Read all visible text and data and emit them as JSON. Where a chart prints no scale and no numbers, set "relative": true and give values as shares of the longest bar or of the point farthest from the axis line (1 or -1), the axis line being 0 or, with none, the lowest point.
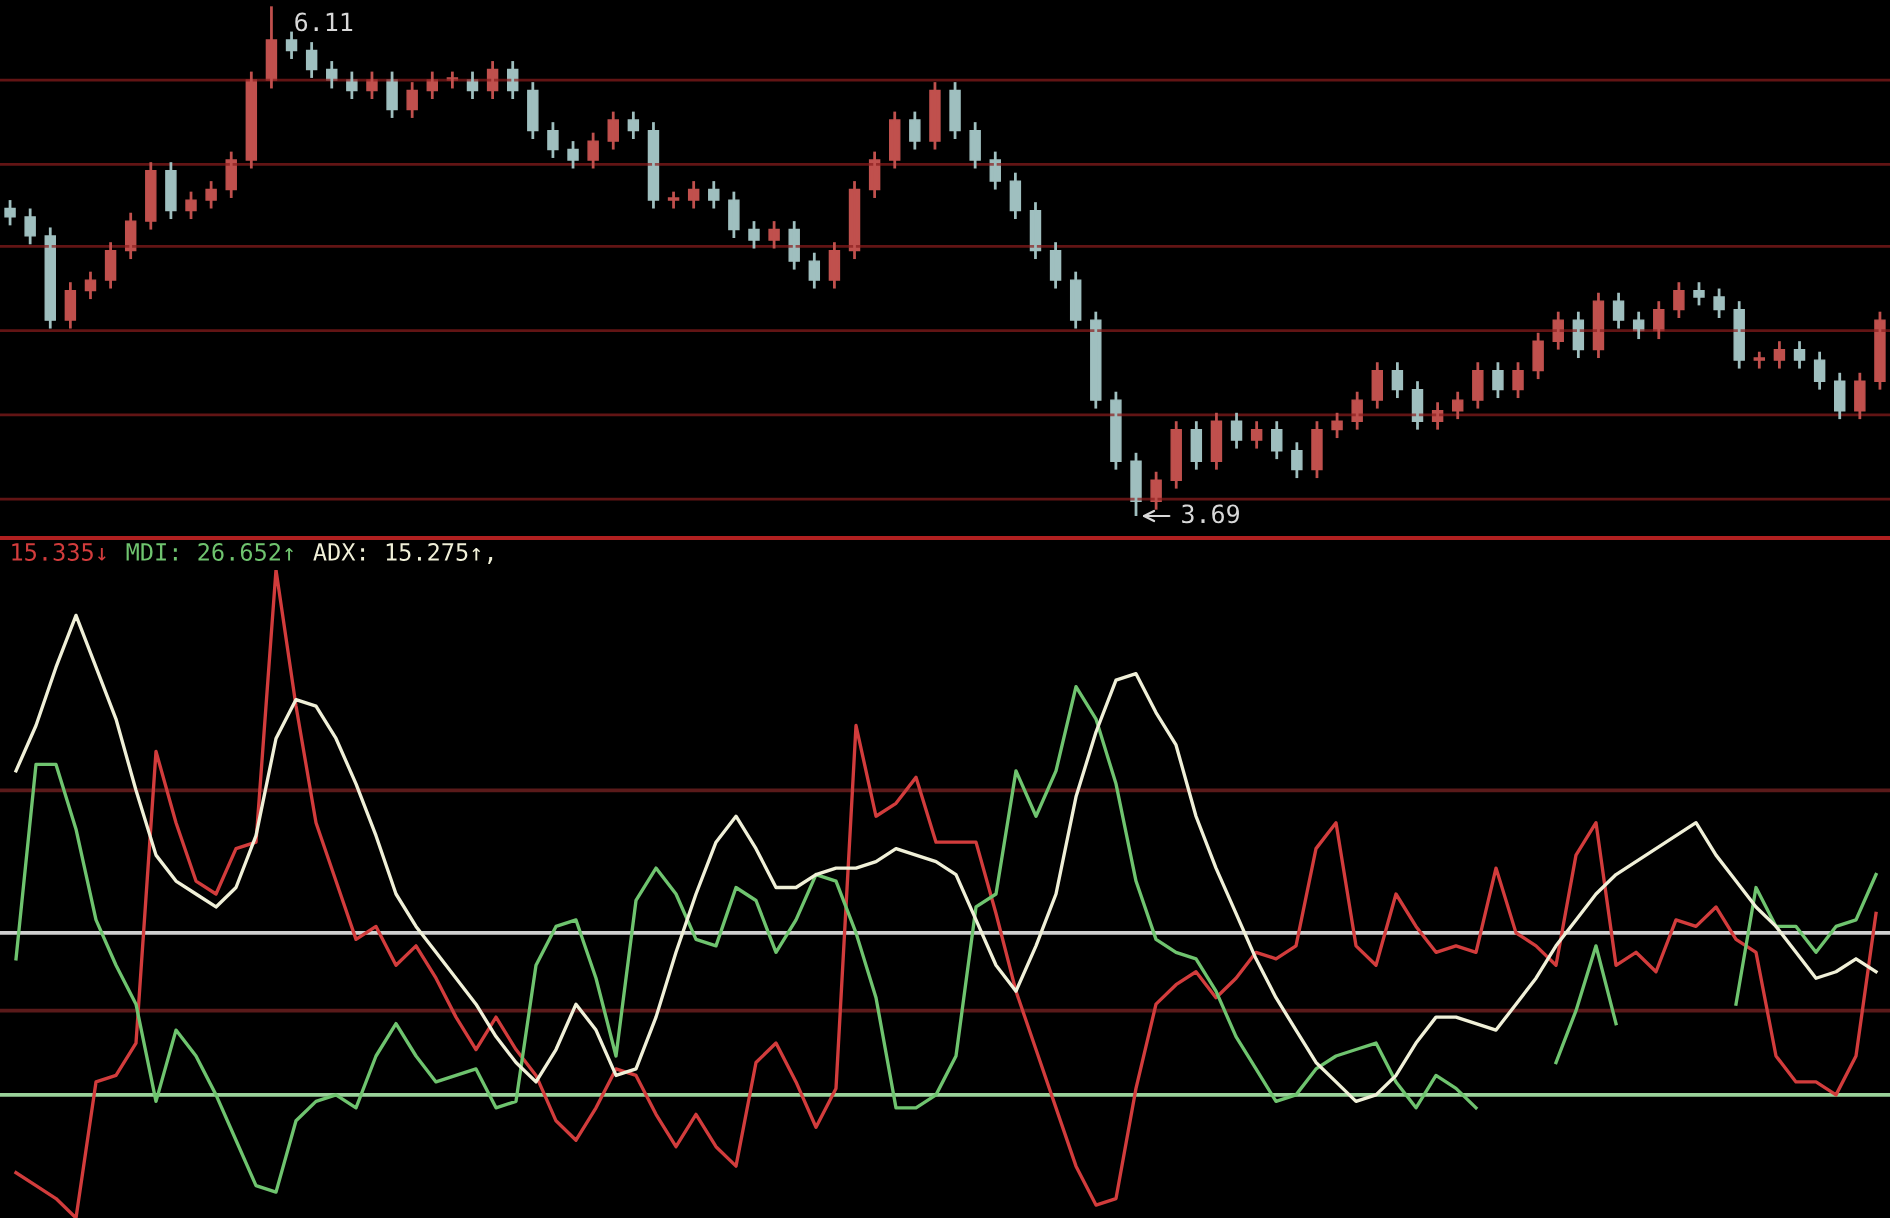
{
  "chart_data": [
    {
      "type": "candlestick",
      "grid": "y",
      "ylim": [
        3.595,
        6.14
      ],
      "yticks": [
        {
          "value": 5.76,
          "label": null
        },
        {
          "value": 5.36,
          "label": null
        },
        {
          "value": 4.97,
          "label": null
        },
        {
          "value": 4.57,
          "label": null
        },
        {
          "value": 4.17,
          "label": null
        },
        {
          "value": 3.77,
          "label": null
        }
      ],
      "annotations": [
        "6.11",
        "3.69"
      ],
      "categories": [
        null,
        null,
        null,
        null,
        null,
        null,
        null,
        null,
        null,
        null,
        null,
        null,
        null,
        null,
        null,
        null,
        null,
        null,
        null,
        null,
        null,
        null,
        null,
        null,
        null,
        null,
        null,
        null,
        null,
        null,
        null,
        null,
        null,
        null,
        null,
        null,
        null,
        null,
        null,
        null,
        null,
        null,
        null,
        null,
        null,
        null,
        null,
        null,
        null,
        null,
        null,
        null,
        null,
        null,
        null,
        null,
        null,
        null,
        null,
        null,
        null,
        null,
        null,
        null,
        null,
        null,
        null,
        null,
        null,
        null,
        null,
        null,
        null,
        null,
        null,
        null,
        null,
        null,
        null,
        null,
        null,
        null,
        null,
        null,
        null,
        null,
        null,
        null,
        null,
        null,
        null,
        null,
        null,
        null
      ],
      "colors": [
        "#9fbfbf",
        "#9fbfbf",
        "#9fbfbf",
        "#c0504d",
        "#c0504d",
        "#c0504d",
        "#c0504d",
        "#c0504d",
        "#9fbfbf",
        "#c0504d",
        "#c0504d",
        "#c0504d",
        "#c0504d",
        "#c0504d",
        "#9fbfbf",
        "#9fbfbf",
        "#9fbfbf",
        "#9fbfbf",
        "#c0504d",
        "#9fbfbf",
        "#c0504d",
        "#c0504d",
        "#c0504d",
        "#9fbfbf",
        "#c0504d",
        "#9fbfbf",
        "#9fbfbf",
        "#9fbfbf",
        "#9fbfbf",
        "#c0504d",
        "#c0504d",
        "#9fbfbf",
        "#9fbfbf",
        "#c0504d",
        "#c0504d",
        "#9fbfbf",
        "#9fbfbf",
        "#9fbfbf",
        "#c0504d",
        "#9fbfbf",
        "#9fbfbf",
        "#c0504d",
        "#c0504d",
        "#c0504d",
        "#c0504d",
        "#9fbfbf",
        "#c0504d",
        "#9fbfbf",
        "#9fbfbf",
        "#9fbfbf",
        "#9fbfbf",
        "#9fbfbf",
        "#9fbfbf",
        "#9fbfbf",
        "#9fbfbf",
        "#9fbfbf",
        "#9fbfbf",
        "#c0504d",
        "#c0504d",
        "#9fbfbf",
        "#c0504d",
        "#9fbfbf",
        "#c0504d",
        "#9fbfbf",
        "#9fbfbf",
        "#c0504d",
        "#c0504d",
        "#c0504d",
        "#c0504d",
        "#9fbfbf",
        "#9fbfbf",
        "#c0504d",
        "#c0504d",
        "#c0504d",
        "#9fbfbf",
        "#c0504d",
        "#c0504d",
        "#c0504d",
        "#9fbfbf",
        "#c0504d",
        "#9fbfbf",
        "#9fbfbf",
        "#c0504d",
        "#c0504d",
        "#9fbfbf",
        "#9fbfbf",
        "#9fbfbf",
        "#c0504d",
        "#c0504d",
        "#9fbfbf",
        "#9fbfbf",
        "#9fbfbf",
        "#c0504d",
        "#c0504d"
      ],
      "ohlc": [
        [
          5.15,
          5.19,
          5.07,
          5.11
        ],
        [
          5.11,
          5.15,
          4.98,
          5.02
        ],
        [
          5.02,
          5.06,
          4.58,
          4.62
        ],
        [
          4.62,
          4.8,
          4.58,
          4.76
        ],
        [
          4.76,
          4.85,
          4.72,
          4.81
        ],
        [
          4.81,
          4.99,
          4.77,
          4.95
        ],
        [
          4.95,
          5.13,
          4.91,
          5.09
        ],
        [
          5.09,
          5.37,
          5.05,
          5.33
        ],
        [
          5.33,
          5.37,
          5.1,
          5.14
        ],
        [
          5.14,
          5.23,
          5.1,
          5.19
        ],
        [
          5.19,
          5.28,
          5.15,
          5.24
        ],
        [
          5.24,
          5.42,
          5.2,
          5.38
        ],
        [
          5.38,
          5.8,
          5.34,
          5.76
        ],
        [
          5.76,
          6.11,
          5.72,
          5.95
        ],
        [
          5.95,
          5.99,
          5.86,
          5.9
        ],
        [
          5.9,
          5.94,
          5.77,
          5.81
        ],
        [
          5.81,
          5.85,
          5.72,
          5.76
        ],
        [
          5.76,
          5.8,
          5.67,
          5.71
        ],
        [
          5.71,
          5.8,
          5.67,
          5.76
        ],
        [
          5.76,
          5.8,
          5.58,
          5.62
        ],
        [
          5.62,
          5.75,
          5.58,
          5.71
        ],
        [
          5.71,
          5.8,
          5.67,
          5.76
        ],
        [
          5.76,
          5.8,
          5.72,
          5.76
        ],
        [
          5.76,
          5.8,
          5.67,
          5.71
        ],
        [
          5.71,
          5.85,
          5.67,
          5.81
        ],
        [
          5.81,
          5.85,
          5.67,
          5.71
        ],
        [
          5.71,
          5.75,
          5.48,
          5.52
        ],
        [
          5.52,
          5.56,
          5.39,
          5.43
        ],
        [
          5.43,
          5.47,
          5.34,
          5.38
        ],
        [
          5.38,
          5.51,
          5.34,
          5.47
        ],
        [
          5.47,
          5.61,
          5.43,
          5.57
        ],
        [
          5.57,
          5.61,
          5.48,
          5.52
        ],
        [
          5.52,
          5.56,
          5.15,
          5.19
        ],
        [
          5.19,
          5.23,
          5.15,
          5.19
        ],
        [
          5.19,
          5.28,
          5.15,
          5.24
        ],
        [
          5.24,
          5.28,
          5.15,
          5.19
        ],
        [
          5.19,
          5.23,
          5.01,
          5.05
        ],
        [
          5.05,
          5.09,
          4.96,
          5.0
        ],
        [
          5.0,
          5.09,
          4.96,
          5.05
        ],
        [
          5.05,
          5.09,
          4.86,
          4.9
        ],
        [
          4.9,
          4.94,
          4.77,
          4.81
        ],
        [
          4.81,
          4.99,
          4.77,
          4.95
        ],
        [
          4.95,
          5.28,
          4.91,
          5.24
        ],
        [
          5.24,
          5.42,
          5.2,
          5.38
        ],
        [
          5.38,
          5.61,
          5.34,
          5.57
        ],
        [
          5.57,
          5.61,
          5.43,
          5.47
        ],
        [
          5.47,
          5.75,
          5.43,
          5.71
        ],
        [
          5.71,
          5.75,
          5.48,
          5.52
        ],
        [
          5.52,
          5.56,
          5.34,
          5.38
        ],
        [
          5.38,
          5.42,
          5.24,
          5.28
        ],
        [
          5.28,
          5.32,
          5.1,
          5.14
        ],
        [
          5.14,
          5.18,
          4.91,
          4.95
        ],
        [
          4.95,
          4.99,
          4.77,
          4.81
        ],
        [
          4.81,
          4.85,
          4.58,
          4.62
        ],
        [
          4.62,
          4.66,
          4.2,
          4.24
        ],
        [
          4.24,
          4.28,
          3.91,
          3.95
        ],
        [
          3.95,
          3.99,
          3.69,
          3.76
        ],
        [
          3.76,
          3.9,
          3.72,
          3.86
        ],
        [
          3.86,
          4.14,
          3.82,
          4.1
        ],
        [
          4.1,
          4.14,
          3.91,
          3.95
        ],
        [
          3.95,
          4.18,
          3.91,
          4.14
        ],
        [
          4.14,
          4.18,
          4.01,
          4.05
        ],
        [
          4.05,
          4.14,
          4.01,
          4.1
        ],
        [
          4.1,
          4.14,
          3.96,
          4.0
        ],
        [
          4.0,
          4.04,
          3.87,
          3.91
        ],
        [
          3.91,
          4.14,
          3.87,
          4.1
        ],
        [
          4.1,
          4.18,
          4.06,
          4.14
        ],
        [
          4.14,
          4.28,
          4.1,
          4.24
        ],
        [
          4.24,
          4.42,
          4.2,
          4.38
        ],
        [
          4.38,
          4.42,
          4.25,
          4.29
        ],
        [
          4.29,
          4.33,
          4.1,
          4.14
        ],
        [
          4.14,
          4.23,
          4.1,
          4.19
        ],
        [
          4.19,
          4.28,
          4.15,
          4.24
        ],
        [
          4.24,
          4.42,
          4.2,
          4.38
        ],
        [
          4.38,
          4.42,
          4.25,
          4.29
        ],
        [
          4.29,
          4.42,
          4.25,
          4.38
        ],
        [
          4.38,
          4.56,
          4.34,
          4.52
        ],
        [
          4.52,
          4.66,
          4.48,
          4.62
        ],
        [
          4.62,
          4.66,
          4.44,
          4.48
        ],
        [
          4.48,
          4.75,
          4.44,
          4.71
        ],
        [
          4.71,
          4.75,
          4.58,
          4.62
        ],
        [
          4.62,
          4.66,
          4.53,
          4.57
        ],
        [
          4.57,
          4.71,
          4.53,
          4.67
        ],
        [
          4.67,
          4.8,
          4.63,
          4.76
        ],
        [
          4.76,
          4.8,
          4.69,
          4.73
        ],
        [
          4.73,
          4.77,
          4.63,
          4.67
        ],
        [
          4.67,
          4.71,
          4.39,
          4.43
        ],
        [
          4.43,
          4.47,
          4.39,
          4.43
        ],
        [
          4.43,
          4.52,
          4.39,
          4.48
        ],
        [
          4.48,
          4.52,
          4.39,
          4.43
        ],
        [
          4.43,
          4.47,
          4.29,
          4.33
        ],
        [
          4.33,
          4.37,
          4.15,
          4.19
        ],
        [
          4.19,
          4.37,
          4.15,
          4.33
        ],
        [
          4.33,
          4.66,
          4.29,
          4.62
        ]
      ]
    },
    {
      "type": "line",
      "relative": true,
      "annotations": [
        "15.335↓",
        "MDI: 26.652↑",
        "ADX: 15.275↑,"
      ],
      "ref_lines": [
        {
          "axis": "y",
          "value": 0.66,
          "color": "#5a1a1a"
        },
        {
          "axis": "y",
          "value": 0.44,
          "color": "#d0d0d0"
        },
        {
          "axis": "y",
          "value": 0.32,
          "color": "#5a1a1a"
        },
        {
          "axis": "y",
          "value": 0.19,
          "color": "#9ad29a"
        }
      ],
      "categories": [
        null,
        null,
        null,
        null,
        null,
        null,
        null,
        null,
        null,
        null,
        null,
        null,
        null,
        null,
        null,
        null,
        null,
        null,
        null,
        null,
        null,
        null,
        null,
        null,
        null,
        null,
        null,
        null,
        null,
        null,
        null,
        null,
        null,
        null,
        null,
        null,
        null,
        null,
        null,
        null,
        null,
        null,
        null,
        null,
        null,
        null,
        null,
        null,
        null,
        null,
        null,
        null,
        null,
        null,
        null,
        null,
        null,
        null,
        null,
        null,
        null,
        null,
        null,
        null,
        null,
        null,
        null,
        null,
        null,
        null,
        null,
        null,
        null,
        null,
        null,
        null,
        null,
        null,
        null,
        null,
        null,
        null,
        null,
        null,
        null,
        null,
        null,
        null,
        null,
        null,
        null,
        null,
        null,
        null
      ],
      "series": [
        {
          "color": "#d23c3c",
          "values": [
            0.07,
            0.05,
            0.03,
            0,
            0.21,
            0.22,
            0.27,
            0.72,
            0.61,
            0.52,
            0.5,
            0.57,
            0.58,
            1.0,
            0.79,
            0.61,
            0.52,
            0.43,
            0.45,
            0.39,
            0.42,
            0.37,
            0.31,
            0.26,
            0.31,
            0.26,
            0.22,
            0.15,
            0.12,
            0.17,
            0.23,
            0.22,
            0.16,
            0.11,
            0.16,
            0.11,
            0.08,
            0.24,
            0.27,
            0.21,
            0.14,
            0.2,
            0.76,
            0.62,
            0.64,
            0.68,
            0.58,
            0.58,
            0.58,
            0.47,
            0.35,
            0.26,
            0.17,
            0.08,
            0.02,
            0.03,
            0.2,
            0.33,
            0.36,
            0.38,
            0.34,
            0.37,
            0.41,
            0.4,
            0.42,
            0.57,
            0.61,
            0.42,
            0.39,
            0.5,
            0.45,
            0.41,
            0.42,
            0.41,
            0.54,
            0.44,
            0.42,
            0.39,
            0.56,
            0.61,
            0.39,
            0.41,
            0.38,
            0.46,
            0.45,
            0.48,
            0.43,
            0.41,
            0.25,
            0.21,
            0.21,
            0.19,
            0.25,
            0.47
          ]
        },
        {
          "color": "#6fc46f",
          "values": [
            0.4,
            0.7,
            0.7,
            0.6,
            0.46,
            0.39,
            0.33,
            0.18,
            0.29,
            0.25,
            0.19,
            0.12,
            0.05,
            0.04,
            0.15,
            0.18,
            0.19,
            0.17,
            0.25,
            0.3,
            0.25,
            0.21,
            0.22,
            0.23,
            0.17,
            0.18,
            0.39,
            0.45,
            0.46,
            0.37,
            0.25,
            0.49,
            0.54,
            0.5,
            0.43,
            0.42,
            0.51,
            0.49,
            0.41,
            0.46,
            0.53,
            0.52,
            0.44,
            0.34,
            0.17,
            0.17,
            0.19,
            0.25,
            0.48,
            0.5,
            0.69,
            0.62,
            0.69,
            0.82,
            0.77,
            0.67,
            0.52,
            0.43,
            0.41,
            0.4,
            0.35,
            0.28,
            0.23,
            0.18,
            0.19,
            0.23,
            0.25,
            0.26,
            0.27,
            0.21,
            0.17,
            0.22,
            0.2,
            0.17,
            null,
            null,
            null,
            0.24,
            0.32,
            0.42,
            0.3,
            null,
            null,
            null,
            null,
            null,
            0.33,
            0.51,
            0.45,
            0.45,
            0.41,
            0.45,
            0.46,
            0.53
          ]
        },
        {
          "color": "#f0f0d8",
          "values": [
            0.69,
            0.76,
            0.85,
            0.93,
            0.85,
            0.77,
            0.66,
            0.56,
            0.52,
            0.5,
            0.48,
            0.51,
            0.59,
            0.74,
            0.8,
            0.79,
            0.74,
            0.67,
            0.59,
            0.5,
            0.45,
            0.41,
            0.37,
            0.33,
            0.28,
            0.24,
            0.21,
            0.26,
            0.33,
            0.29,
            0.22,
            0.23,
            0.31,
            0.41,
            0.5,
            0.58,
            0.62,
            0.57,
            0.51,
            0.51,
            0.53,
            0.54,
            0.54,
            0.55,
            0.57,
            0.56,
            0.55,
            0.53,
            0.46,
            0.39,
            0.35,
            0.42,
            0.5,
            0.65,
            0.75,
            0.83,
            0.84,
            0.78,
            0.73,
            0.62,
            0.54,
            0.47,
            0.4,
            0.34,
            0.29,
            0.24,
            0.21,
            0.18,
            0.19,
            0.22,
            0.27,
            0.31,
            0.31,
            0.3,
            0.29,
            0.33,
            0.37,
            0.42,
            0.46,
            0.5,
            0.53,
            0.55,
            0.57,
            0.59,
            0.61,
            0.56,
            0.52,
            0.48,
            0.45,
            0.41,
            0.37,
            0.38,
            0.4,
            0.38
          ]
        }
      ]
    }
  ]
}
